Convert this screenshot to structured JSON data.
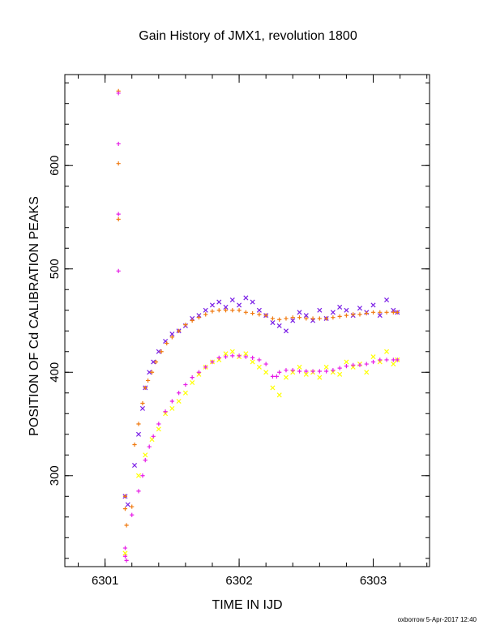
{
  "chart_data": {
    "type": "scatter",
    "title": "Gain History of JMX1, revolution 1800",
    "xlabel": "TIME IN IJD",
    "ylabel": "POSITION OF Cd CALIBRATION PEAKS",
    "xlim": [
      6300.7,
      6303.42
    ],
    "ylim": [
      212,
      688
    ],
    "x_ticks": [
      "6301",
      "6302",
      "6303"
    ],
    "y_ticks": [
      "300",
      "400",
      "500",
      "600"
    ],
    "grid": false,
    "series": [
      {
        "marker": "x",
        "color": "#7a1ee6",
        "points": [
          [
            6301.15,
            280
          ],
          [
            6301.17,
            272
          ],
          [
            6301.22,
            310
          ],
          [
            6301.25,
            340
          ],
          [
            6301.28,
            365
          ],
          [
            6301.3,
            385
          ],
          [
            6301.33,
            400
          ],
          [
            6301.36,
            410
          ],
          [
            6301.4,
            420
          ],
          [
            6301.45,
            430
          ],
          [
            6301.5,
            437
          ],
          [
            6301.55,
            440
          ],
          [
            6301.6,
            445
          ],
          [
            6301.65,
            452
          ],
          [
            6301.7,
            455
          ],
          [
            6301.75,
            460
          ],
          [
            6301.8,
            465
          ],
          [
            6301.85,
            468
          ],
          [
            6301.9,
            463
          ],
          [
            6301.95,
            470
          ],
          [
            6302.0,
            465
          ],
          [
            6302.05,
            472
          ],
          [
            6302.1,
            468
          ],
          [
            6302.15,
            460
          ],
          [
            6302.2,
            455
          ],
          [
            6302.25,
            448
          ],
          [
            6302.3,
            445
          ],
          [
            6302.35,
            440
          ],
          [
            6302.4,
            450
          ],
          [
            6302.45,
            458
          ],
          [
            6302.5,
            455
          ],
          [
            6302.55,
            450
          ],
          [
            6302.6,
            460
          ],
          [
            6302.65,
            452
          ],
          [
            6302.7,
            458
          ],
          [
            6302.75,
            463
          ],
          [
            6302.8,
            460
          ],
          [
            6302.85,
            455
          ],
          [
            6302.9,
            462
          ],
          [
            6302.95,
            458
          ],
          [
            6303.0,
            465
          ],
          [
            6303.05,
            455
          ],
          [
            6303.1,
            470
          ],
          [
            6303.15,
            460
          ],
          [
            6303.18,
            458
          ]
        ]
      },
      {
        "marker": "x",
        "color": "#ffff00",
        "points": [
          [
            6301.15,
            225
          ],
          [
            6301.25,
            300
          ],
          [
            6301.3,
            320
          ],
          [
            6301.35,
            335
          ],
          [
            6301.4,
            345
          ],
          [
            6301.45,
            360
          ],
          [
            6301.5,
            365
          ],
          [
            6301.55,
            372
          ],
          [
            6301.6,
            380
          ],
          [
            6301.65,
            390
          ],
          [
            6301.7,
            398
          ],
          [
            6301.75,
            405
          ],
          [
            6301.8,
            410
          ],
          [
            6301.85,
            412
          ],
          [
            6301.9,
            418
          ],
          [
            6301.95,
            420
          ],
          [
            6302.0,
            415
          ],
          [
            6302.05,
            418
          ],
          [
            6302.1,
            410
          ],
          [
            6302.15,
            405
          ],
          [
            6302.2,
            400
          ],
          [
            6302.25,
            385
          ],
          [
            6302.3,
            378
          ],
          [
            6302.35,
            395
          ],
          [
            6302.4,
            400
          ],
          [
            6302.45,
            405
          ],
          [
            6302.5,
            398
          ],
          [
            6302.55,
            400
          ],
          [
            6302.6,
            395
          ],
          [
            6302.65,
            405
          ],
          [
            6302.7,
            400
          ],
          [
            6302.75,
            398
          ],
          [
            6302.8,
            410
          ],
          [
            6302.85,
            405
          ],
          [
            6302.9,
            408
          ],
          [
            6302.95,
            400
          ],
          [
            6303.0,
            415
          ],
          [
            6303.05,
            410
          ],
          [
            6303.1,
            420
          ],
          [
            6303.15,
            408
          ],
          [
            6303.18,
            412
          ]
        ]
      },
      {
        "marker": "+",
        "color": "#f07a10",
        "points": [
          [
            6301.1,
            672
          ],
          [
            6301.1,
            602
          ],
          [
            6301.1,
            548
          ],
          [
            6301.15,
            280
          ],
          [
            6301.15,
            268
          ],
          [
            6301.16,
            252
          ],
          [
            6301.2,
            270
          ],
          [
            6301.22,
            330
          ],
          [
            6301.25,
            350
          ],
          [
            6301.28,
            370
          ],
          [
            6301.3,
            385
          ],
          [
            6301.32,
            392
          ],
          [
            6301.35,
            400
          ],
          [
            6301.38,
            410
          ],
          [
            6301.42,
            420
          ],
          [
            6301.46,
            428
          ],
          [
            6301.5,
            434
          ],
          [
            6301.55,
            440
          ],
          [
            6301.6,
            446
          ],
          [
            6301.65,
            450
          ],
          [
            6301.7,
            453
          ],
          [
            6301.75,
            456
          ],
          [
            6301.8,
            459
          ],
          [
            6301.85,
            460
          ],
          [
            6301.9,
            460
          ],
          [
            6301.95,
            460
          ],
          [
            6302.0,
            460
          ],
          [
            6302.05,
            458
          ],
          [
            6302.1,
            457
          ],
          [
            6302.15,
            456
          ],
          [
            6302.2,
            455
          ],
          [
            6302.25,
            452
          ],
          [
            6302.3,
            451
          ],
          [
            6302.35,
            452
          ],
          [
            6302.4,
            453
          ],
          [
            6302.45,
            453
          ],
          [
            6302.5,
            452
          ],
          [
            6302.55,
            452
          ],
          [
            6302.6,
            452
          ],
          [
            6302.65,
            452
          ],
          [
            6302.7,
            453
          ],
          [
            6302.75,
            454
          ],
          [
            6302.8,
            455
          ],
          [
            6302.85,
            456
          ],
          [
            6302.9,
            456
          ],
          [
            6302.95,
            457
          ],
          [
            6303.0,
            458
          ],
          [
            6303.05,
            458
          ],
          [
            6303.1,
            458
          ],
          [
            6303.15,
            458
          ],
          [
            6303.18,
            458
          ]
        ]
      },
      {
        "marker": "+",
        "color": "#e61ee6",
        "points": [
          [
            6301.1,
            670
          ],
          [
            6301.1,
            621
          ],
          [
            6301.1,
            553
          ],
          [
            6301.1,
            498
          ],
          [
            6301.15,
            230
          ],
          [
            6301.15,
            222
          ],
          [
            6301.16,
            218
          ],
          [
            6301.2,
            262
          ],
          [
            6301.25,
            285
          ],
          [
            6301.28,
            300
          ],
          [
            6301.3,
            315
          ],
          [
            6301.33,
            328
          ],
          [
            6301.36,
            338
          ],
          [
            6301.4,
            350
          ],
          [
            6301.45,
            362
          ],
          [
            6301.5,
            372
          ],
          [
            6301.55,
            380
          ],
          [
            6301.6,
            388
          ],
          [
            6301.65,
            395
          ],
          [
            6301.7,
            400
          ],
          [
            6301.75,
            405
          ],
          [
            6301.8,
            410
          ],
          [
            6301.85,
            414
          ],
          [
            6301.9,
            415
          ],
          [
            6301.95,
            416
          ],
          [
            6302.0,
            416
          ],
          [
            6302.05,
            415
          ],
          [
            6302.1,
            414
          ],
          [
            6302.15,
            412
          ],
          [
            6302.2,
            408
          ],
          [
            6302.25,
            396
          ],
          [
            6302.28,
            396
          ],
          [
            6302.3,
            400
          ],
          [
            6302.35,
            402
          ],
          [
            6302.4,
            402
          ],
          [
            6302.45,
            401
          ],
          [
            6302.5,
            401
          ],
          [
            6302.55,
            401
          ],
          [
            6302.6,
            401
          ],
          [
            6302.65,
            401
          ],
          [
            6302.7,
            402
          ],
          [
            6302.75,
            404
          ],
          [
            6302.8,
            406
          ],
          [
            6302.85,
            407
          ],
          [
            6302.9,
            407
          ],
          [
            6302.95,
            408
          ],
          [
            6303.0,
            410
          ],
          [
            6303.05,
            412
          ],
          [
            6303.1,
            412
          ],
          [
            6303.15,
            412
          ],
          [
            6303.18,
            412
          ]
        ]
      }
    ]
  },
  "footer": {
    "credit": "oxborrow  5-Apr-2017 12:40"
  }
}
